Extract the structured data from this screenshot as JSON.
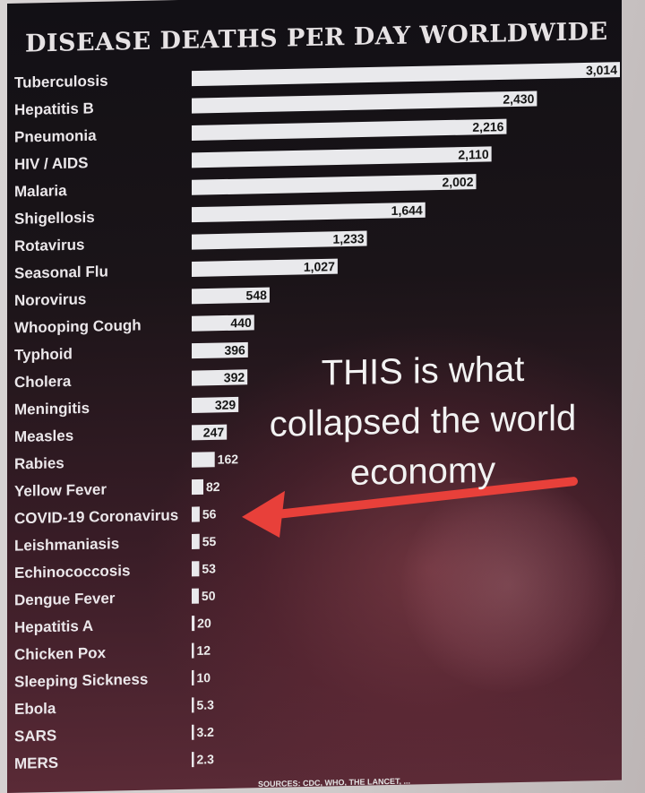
{
  "chart_data": {
    "type": "bar",
    "orientation": "horizontal",
    "title": "DISEASE DEATHS PER DAY WORLDWIDE",
    "categories": [
      "Tuberculosis",
      "Hepatitis B",
      "Pneumonia",
      "HIV / AIDS",
      "Malaria",
      "Shigellosis",
      "Rotavirus",
      "Seasonal Flu",
      "Norovirus",
      "Whooping Cough",
      "Typhoid",
      "Cholera",
      "Meningitis",
      "Measles",
      "Rabies",
      "Yellow Fever",
      "COVID-19 Coronavirus",
      "Leishmaniasis",
      "Echinococcosis",
      "Dengue Fever",
      "Hepatitis A",
      "Chicken Pox",
      "Sleeping Sickness",
      "Ebola",
      "SARS",
      "MERS"
    ],
    "values": [
      3014,
      2430,
      2216,
      2110,
      2002,
      1644,
      1233,
      1027,
      548,
      440,
      396,
      392,
      329,
      247,
      162,
      82,
      56,
      55,
      53,
      50,
      20,
      12,
      10,
      5.3,
      3.2,
      2.3
    ],
    "value_labels": [
      "3,014",
      "2,430",
      "2,216",
      "2,110",
      "2,002",
      "1,644",
      "1,233",
      "1,027",
      "548",
      "440",
      "396",
      "392",
      "329",
      "247",
      "162",
      "82",
      "56",
      "55",
      "53",
      "50",
      "20",
      "12",
      "10",
      "5.3",
      "3.2",
      "2.3"
    ],
    "xlim": [
      0,
      3014
    ],
    "bar_color": "#e9e9ec",
    "grid": false
  },
  "annotation": {
    "lines": [
      "THIS is what",
      "collapsed the world",
      "economy"
    ],
    "arrow_color": "#e8403a",
    "points_to": "COVID-19 Coronavirus"
  },
  "sources": "SOURCES: CDC, WHO, THE LANCET, ..."
}
